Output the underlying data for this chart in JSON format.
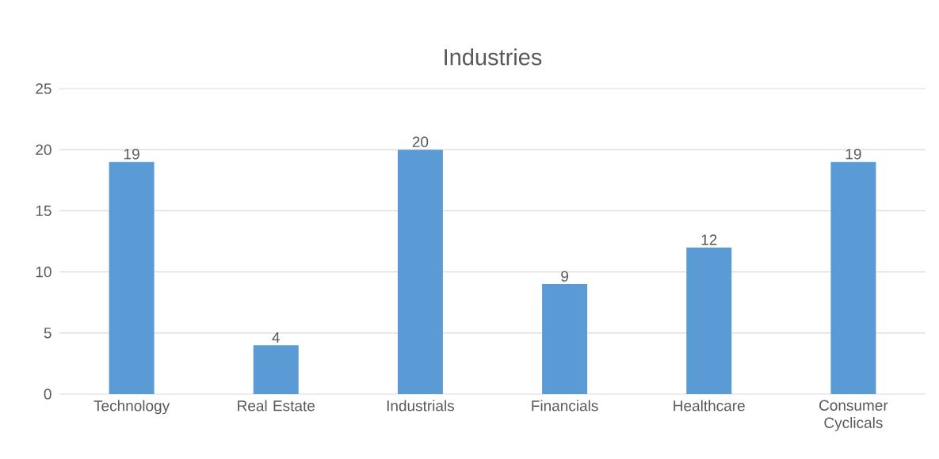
{
  "chart_data": {
    "type": "bar",
    "title": "Industries",
    "categories": [
      "Technology",
      "Real Estate",
      "Industrials",
      "Financials",
      "Healthcare",
      "Consumer Cyclicals"
    ],
    "values": [
      19,
      4,
      20,
      9,
      12,
      19
    ],
    "color": "#5b9bd5",
    "ylim": [
      0,
      25
    ],
    "yticks": [
      0,
      5,
      10,
      15,
      20,
      25
    ],
    "grid": "y",
    "data_labels": true
  }
}
